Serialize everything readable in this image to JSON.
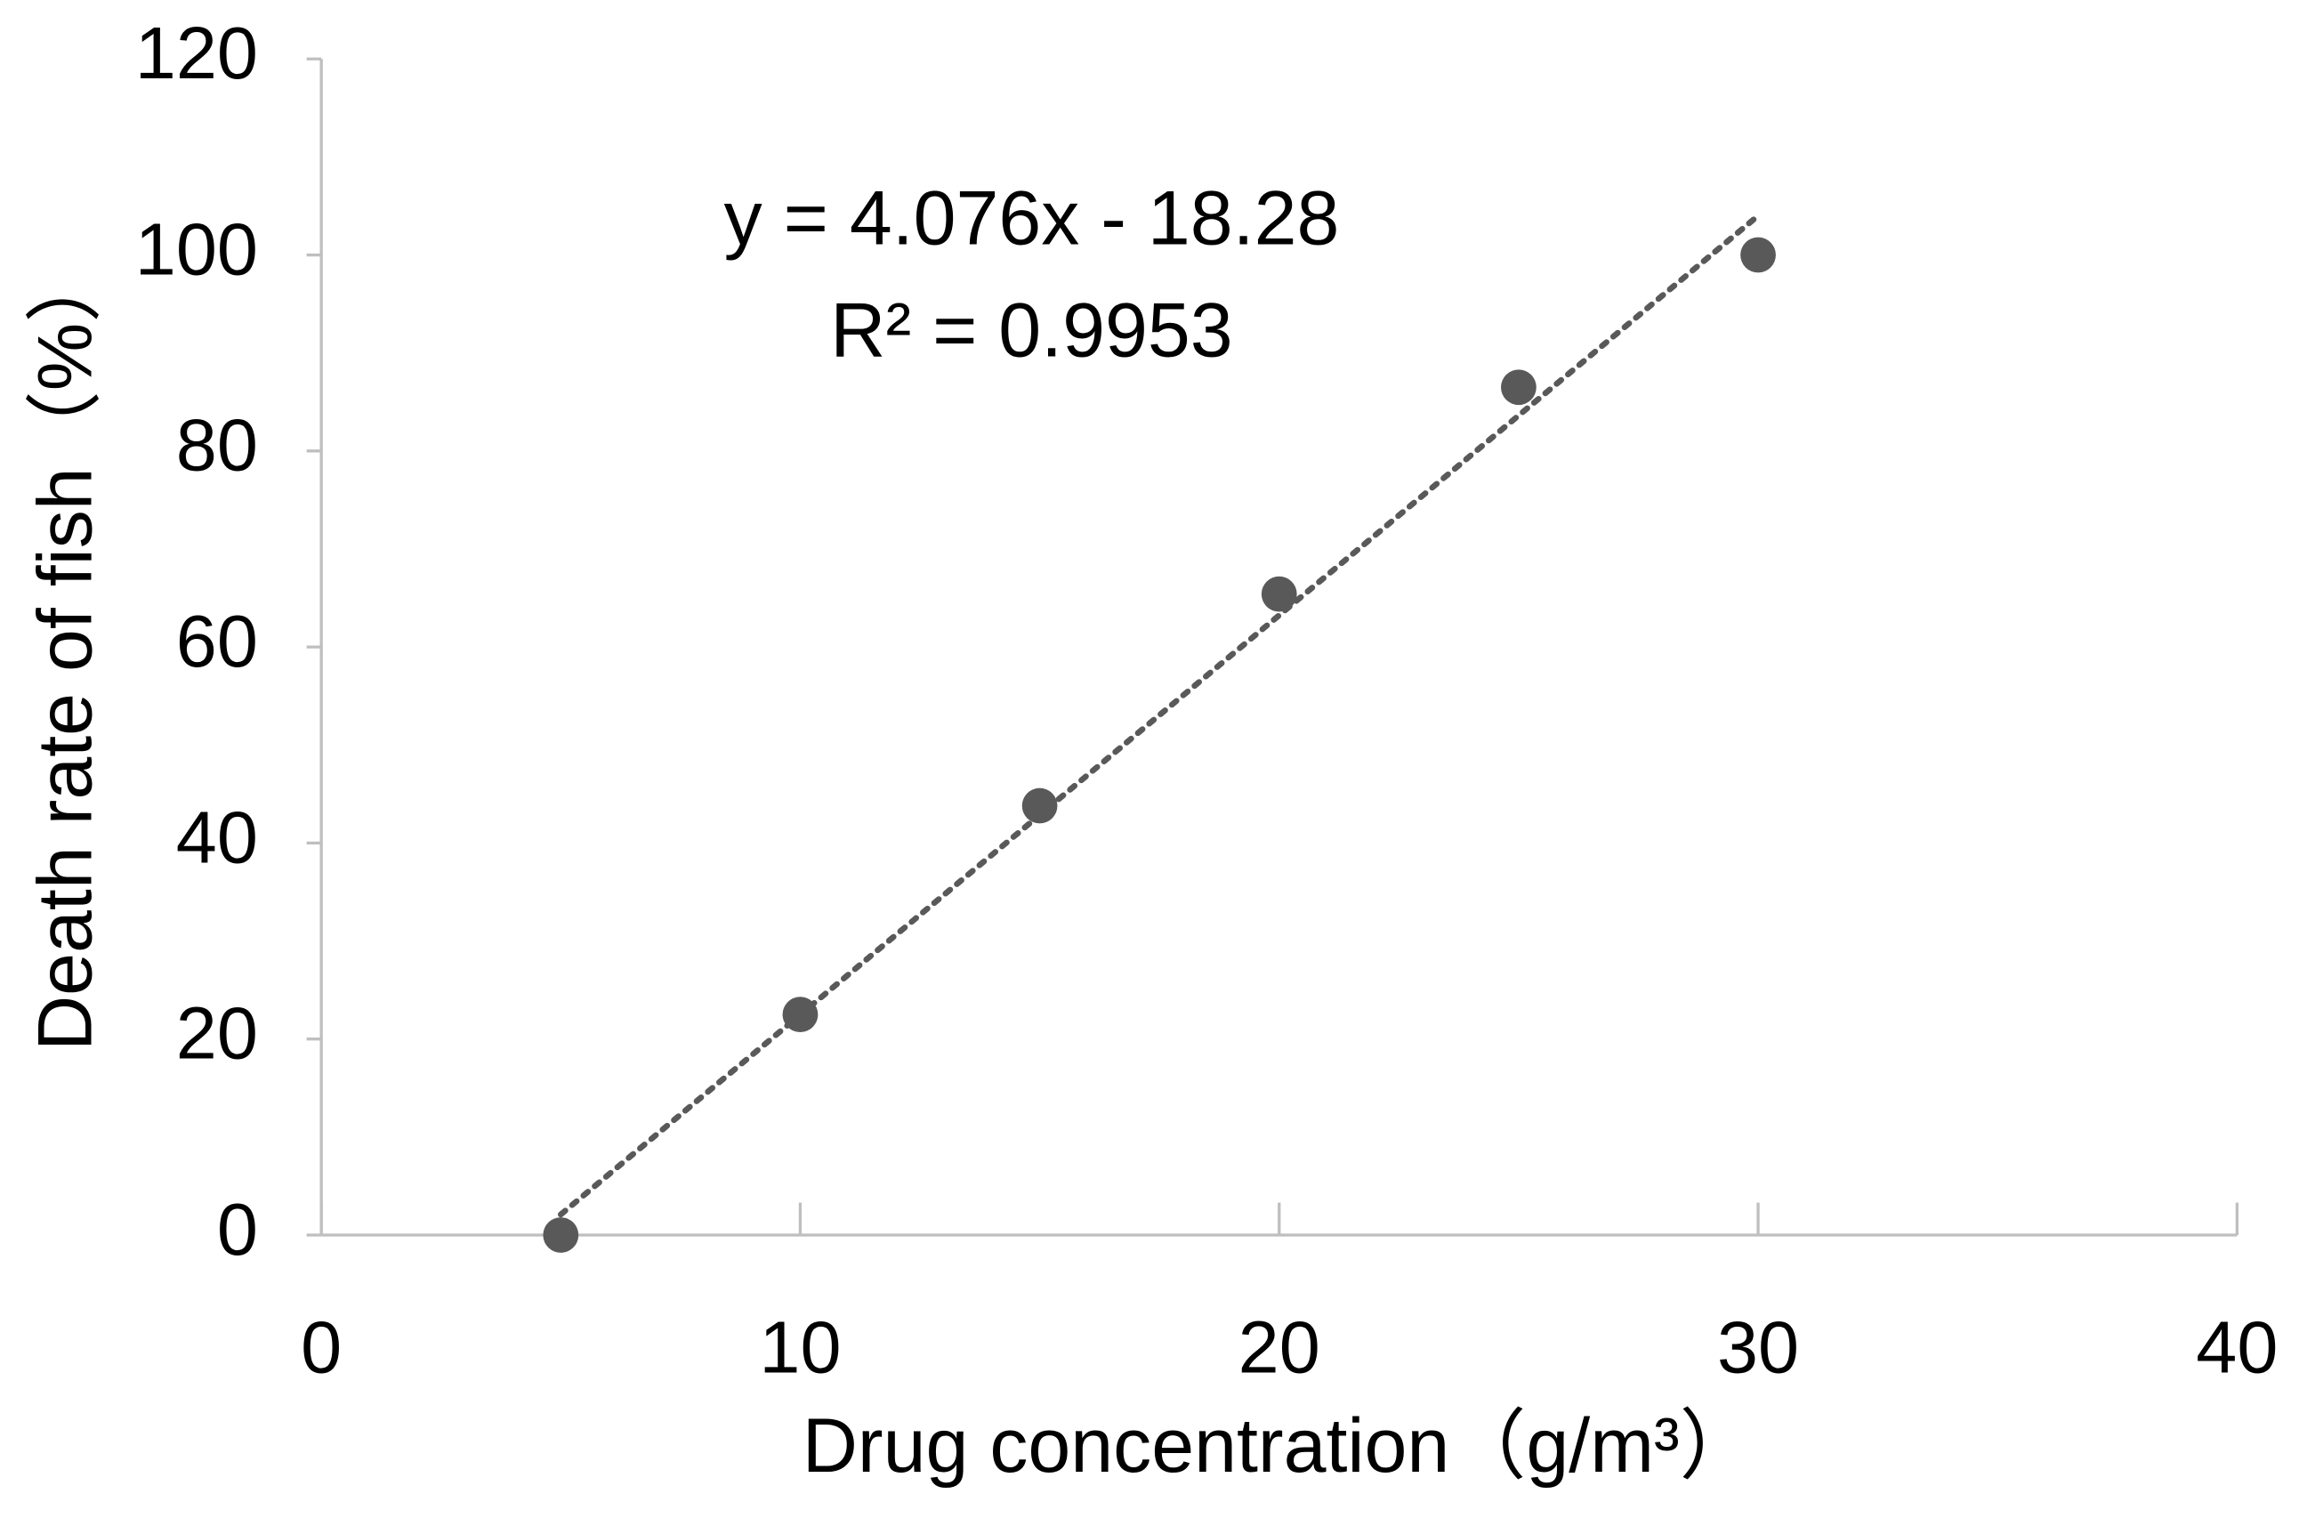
{
  "chart_data": {
    "type": "scatter",
    "x_label": "Drug concentration（g/m³）",
    "y_label": "Death rate of fish（%）",
    "x": [
      5,
      10,
      15,
      20,
      25,
      30
    ],
    "values": [
      0,
      22.5,
      43.8,
      65.4,
      86.5,
      100
    ],
    "color": "#595959",
    "trendline": {
      "slope": 4.076,
      "intercept": -18.28,
      "label": "y = 4.076x - 18.28",
      "r2_label": "R² = 0.9953"
    },
    "xlim": [
      0,
      40
    ],
    "xticks": [
      0,
      10,
      20,
      30,
      40
    ],
    "ylim": [
      0,
      120
    ],
    "yticks": [
      0,
      20,
      40,
      60,
      80,
      100,
      120
    ],
    "grid": false
  }
}
